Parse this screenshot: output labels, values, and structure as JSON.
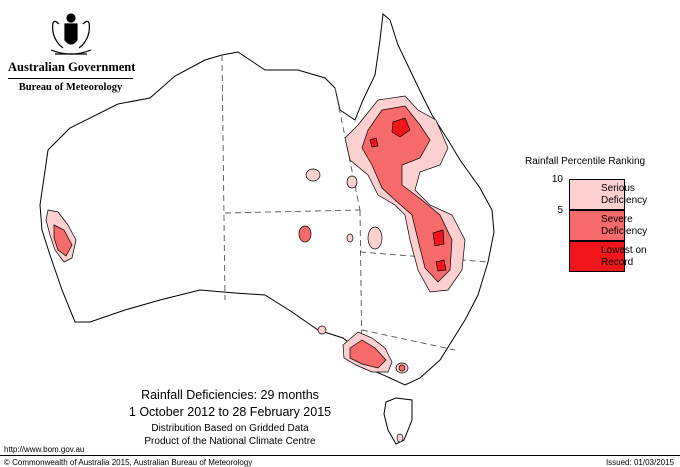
{
  "branding": {
    "government": "Australian Government",
    "bureau": "Bureau of Meteorology",
    "crest_icon": "commonwealth-coat-of-arms"
  },
  "map": {
    "region": "Australia",
    "land_color": "#ffffff",
    "outline_color": "#000000",
    "border_style": "dashed"
  },
  "legend": {
    "title": "Rainfall Percentile Ranking",
    "ticks": [
      "10",
      "5"
    ],
    "classes": [
      {
        "label_line1": "Serious",
        "label_line2": "Deficiency",
        "color": "#fccfd0"
      },
      {
        "label_line1": "Severe",
        "label_line2": "Deficiency",
        "color": "#f66a6c"
      },
      {
        "label_line1": "Lowest on",
        "label_line2": "Record",
        "color": "#f2161c"
      }
    ]
  },
  "caption": {
    "title": "Rainfall Deficiencies: 29 months",
    "period": "1 October 2012 to 28 February 2015",
    "line3": "Distribution Based on Gridded Data",
    "line4": "Product of the National Climate Centre"
  },
  "footer": {
    "url": "http://www.bom.gov.au",
    "copyright": "© Commonwealth of Australia 2015, Australian Bureau of Meteorology",
    "issued": "Issued: 01/03/2015"
  }
}
